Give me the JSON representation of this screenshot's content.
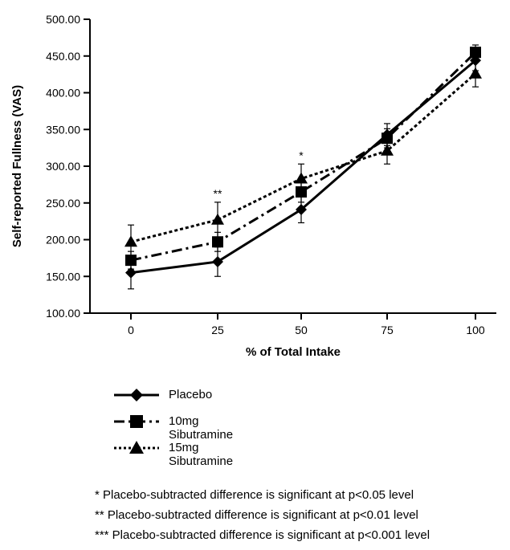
{
  "chart_data": {
    "type": "line",
    "xlabel": "% of Total Intake",
    "ylabel": "Self-reported Fullness (VAS)",
    "x": [
      0,
      25,
      50,
      75,
      100
    ],
    "x_tick_labels": [
      "0",
      "25",
      "50",
      "75",
      "100"
    ],
    "ylim": [
      100,
      500
    ],
    "y_tick_labels": [
      "100.00",
      "150.00",
      "200.00",
      "250.00",
      "300.00",
      "350.00",
      "400.00",
      "450.00",
      "500.00"
    ],
    "grid": false,
    "series": [
      {
        "name": "Placebo",
        "marker": "diamond",
        "line_style": "solid",
        "values": [
          155,
          170,
          241,
          343,
          444
        ],
        "errors": [
          22,
          20,
          18,
          15,
          14
        ]
      },
      {
        "name": "10mg Sibutramine",
        "marker": "square",
        "line_style": "dash-dot",
        "values": [
          172,
          197,
          265,
          338,
          455
        ],
        "errors": [
          12,
          13,
          14,
          13,
          10
        ]
      },
      {
        "name": "15mg Sibutramine",
        "marker": "triangle",
        "line_style": "dotted",
        "values": [
          197,
          227,
          283,
          321,
          426
        ],
        "errors": [
          23,
          24,
          20,
          18,
          18
        ]
      }
    ],
    "annotations": [
      {
        "x": 25,
        "text": "**"
      },
      {
        "x": 50,
        "text": "*"
      }
    ]
  },
  "footnotes": [
    "* Placebo-subtracted difference is significant at p<0.05 level",
    "** Placebo-subtracted difference is significant at p<0.01 level",
    "*** Placebo-subtracted difference is significant at p<0.001 level"
  ]
}
